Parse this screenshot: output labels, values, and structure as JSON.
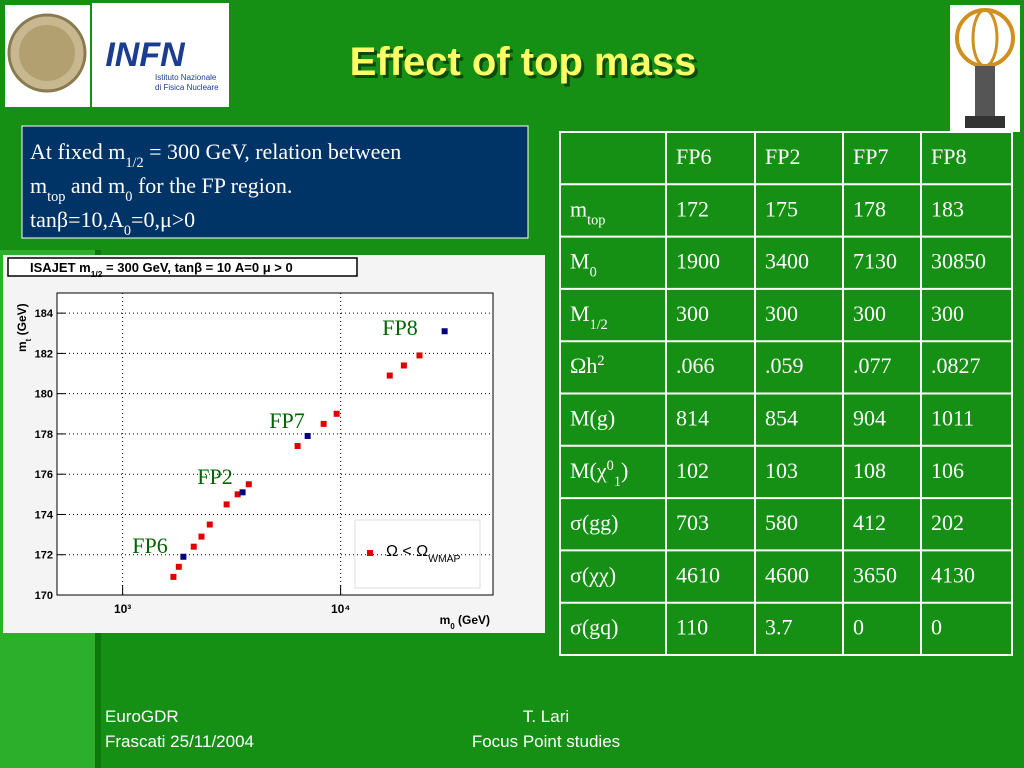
{
  "title": "Effect of top mass",
  "logo": {
    "name": "INFN",
    "line1": "Istituto Nazionale",
    "line2": "di Fisica Nucleare"
  },
  "textbox": [
    [
      {
        "t": "At fixed m"
      },
      {
        "sub": "1/2"
      },
      {
        "t": " = 300 GeV, relation between"
      }
    ],
    [
      {
        "t": "m"
      },
      {
        "sub": "top"
      },
      {
        "t": " and m"
      },
      {
        "sub": "0"
      },
      {
        "t": " for the FP region."
      }
    ],
    [
      {
        "t": "tanβ=10,A"
      },
      {
        "sub": "0"
      },
      {
        "t": "=0,μ>0"
      }
    ]
  ],
  "table": {
    "header": [
      "FP6",
      "FP2",
      "FP7",
      "FP8"
    ],
    "rows": [
      {
        "label": [
          {
            "t": "m"
          },
          {
            "sub": "top"
          }
        ],
        "cells": [
          172,
          175,
          178,
          183
        ]
      },
      {
        "label": [
          {
            "t": "M"
          },
          {
            "sub": "0"
          }
        ],
        "cells": [
          1900,
          3400,
          7130,
          30850
        ]
      },
      {
        "label": [
          {
            "t": "M"
          },
          {
            "sub": "1/2"
          }
        ],
        "cells": [
          300,
          300,
          300,
          300
        ]
      },
      {
        "label": [
          {
            "t": "Ωh"
          },
          {
            "sup": "2"
          }
        ],
        "cells": [
          ".066",
          ".059",
          ".077",
          ".0827"
        ]
      },
      {
        "label": [
          {
            "t": "M(g)"
          }
        ],
        "cells": [
          814,
          854,
          904,
          1011
        ]
      },
      {
        "label": [
          {
            "t": "M(χ"
          },
          {
            "sup": "0"
          },
          {
            "sub": "1"
          },
          {
            "t": ")"
          }
        ],
        "cells": [
          102,
          103,
          108,
          106
        ]
      },
      {
        "label": [
          {
            "t": "σ(gg)"
          }
        ],
        "cells": [
          703,
          580,
          412,
          202
        ]
      },
      {
        "label": [
          {
            "t": "σ(χχ)"
          }
        ],
        "cells": [
          4610,
          4600,
          3650,
          4130
        ]
      },
      {
        "label": [
          {
            "t": "σ(gq)"
          }
        ],
        "cells": [
          110,
          3.7,
          0,
          0
        ]
      }
    ]
  },
  "chart": {
    "type": "scatter",
    "title": [
      {
        "t": "ISAJET m"
      },
      {
        "sub": "1/2"
      },
      {
        "t": " = 300 GeV, tanβ = 10 A=0 μ > 0"
      }
    ],
    "xlabel": [
      {
        "t": "m"
      },
      {
        "sub": "0"
      },
      {
        "t": " (GeV)"
      }
    ],
    "ylabel": [
      {
        "t": "m"
      },
      {
        "sub": "t"
      },
      {
        "t": " (GeV)"
      }
    ],
    "xscale": "log",
    "xlim": [
      500,
      50000
    ],
    "xticks": [
      {
        "value": 1000,
        "label": "10³"
      },
      {
        "value": 10000,
        "label": "10⁴"
      }
    ],
    "ylim": [
      170,
      185
    ],
    "yticks": [
      170,
      172,
      174,
      176,
      178,
      180,
      182,
      184
    ],
    "grid": true,
    "annotations": [
      "FP6",
      "FP2",
      "FP7",
      "FP8"
    ],
    "series": [
      {
        "name": [
          {
            "t": "Ω < Ω"
          },
          {
            "sub": "WMAP"
          }
        ],
        "color": "#e00000",
        "x": [
          1710,
          1810,
          2120,
          2300,
          2510,
          3000,
          3370,
          3790,
          6350,
          8360,
          9590,
          16800,
          19500,
          23000
        ],
        "values": [
          170.9,
          171.4,
          172.4,
          172.9,
          173.5,
          174.5,
          175.0,
          175.5,
          177.4,
          178.5,
          179.0,
          180.9,
          181.4,
          181.9
        ]
      },
      {
        "color": "#000080",
        "x": [
          1900,
          3550,
          7060,
          30000
        ],
        "values": [
          171.9,
          175.1,
          177.9,
          183.1
        ]
      }
    ]
  },
  "footer": {
    "left1": "EuroGDR",
    "left2": "Frascati 25/11/2004",
    "center1": "T. Lari",
    "center2": "Focus Point studies"
  }
}
